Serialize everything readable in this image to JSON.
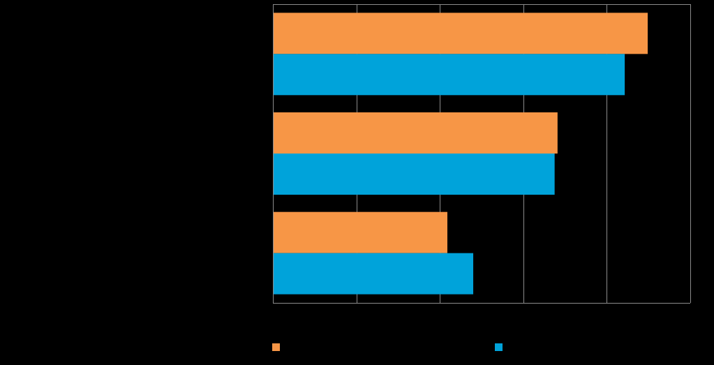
{
  "chart_data": {
    "type": "bar",
    "orientation": "horizontal",
    "categories": [
      "",
      "",
      ""
    ],
    "series": [
      {
        "color": "#F79646",
        "values": [
          89.8,
          68.2,
          41.8
        ]
      },
      {
        "color": "#00A3DA",
        "values": [
          84.3,
          67.5,
          48.0
        ]
      }
    ],
    "xlim": [
      0,
      100
    ],
    "grid": true,
    "legend_position": "bottom"
  }
}
